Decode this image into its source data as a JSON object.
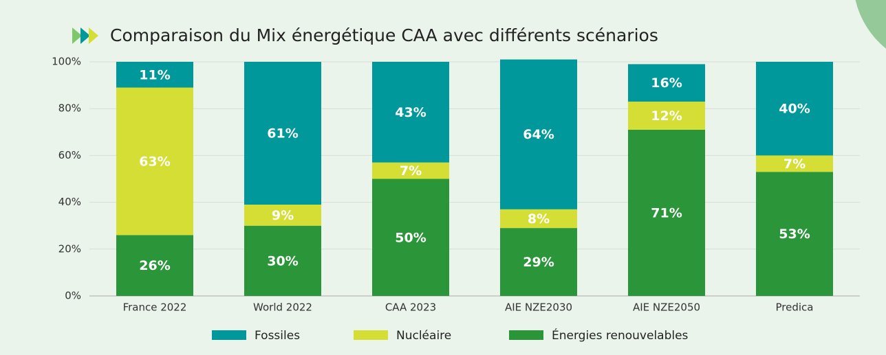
{
  "chart_data": {
    "type": "stacked_bar",
    "title": "Comparaison du Mix énergétique CAA avec différents scénarios",
    "categories": [
      "France 2022",
      "World 2022",
      "CAA 2023",
      "AIE NZE2030",
      "AIE NZE2050",
      "Predica"
    ],
    "series": [
      {
        "name": "Énergies renouvelables",
        "color": "#2a9639",
        "values": [
          26,
          30,
          50,
          29,
          71,
          53
        ],
        "value_labels": [
          "26%",
          "30%",
          "50%",
          "29%",
          "71%",
          "53%"
        ]
      },
      {
        "name": "Nucléaire",
        "color": "#d4de34",
        "values": [
          63,
          9,
          7,
          8,
          12,
          7
        ],
        "value_labels": [
          "63%",
          "9%",
          "7%",
          "8%",
          "12%",
          "7%"
        ]
      },
      {
        "name": "Fossiles",
        "color": "#00989a",
        "values": [
          11,
          61,
          43,
          64,
          16,
          40
        ],
        "value_labels": [
          "11%",
          "61%",
          "43%",
          "64%",
          "16%",
          "40%"
        ]
      }
    ],
    "legend_order": [
      "Fossiles",
      "Nucléaire",
      "Énergies renouvelables"
    ],
    "ylim": [
      0,
      100
    ],
    "yticks": [
      {
        "value": 0,
        "label": "0%"
      },
      {
        "value": 20,
        "label": "20%"
      },
      {
        "value": 40,
        "label": "40%"
      },
      {
        "value": 60,
        "label": "60%"
      },
      {
        "value": 80,
        "label": "80%"
      },
      {
        "value": 100,
        "label": "100%"
      }
    ],
    "grid": true,
    "legend": "bottom"
  }
}
